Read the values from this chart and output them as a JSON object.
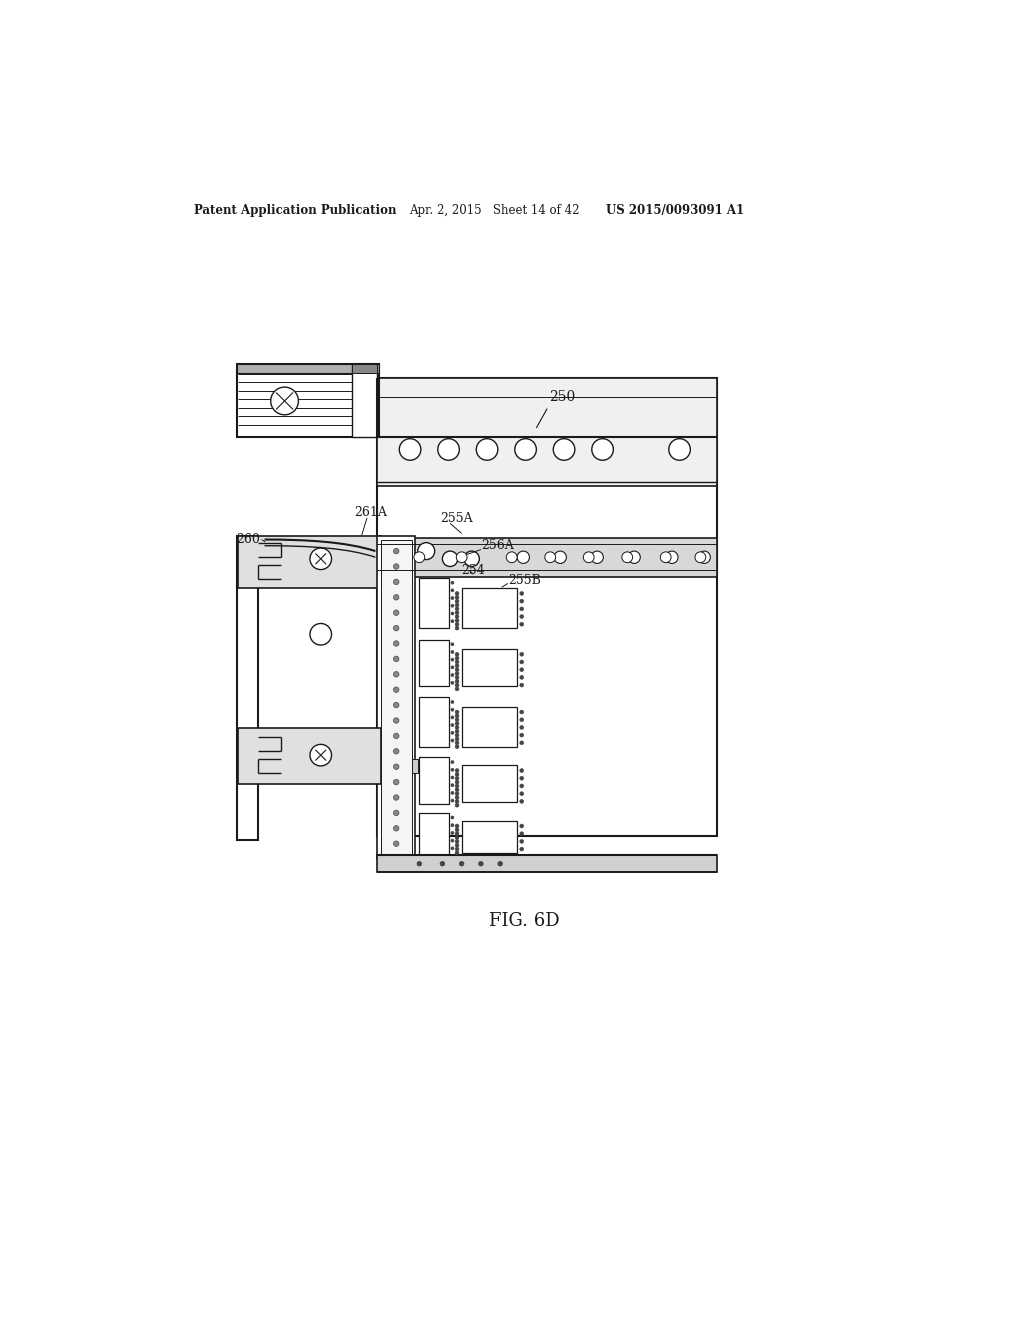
{
  "bg_color": "#ffffff",
  "line_color": "#1a1a1a",
  "header_left": "Patent Application Publication",
  "header_mid": "Apr. 2, 2015   Sheet 14 of 42",
  "header_right": "US 2015/0093091 A1",
  "fig_label": "FIG. 6D"
}
